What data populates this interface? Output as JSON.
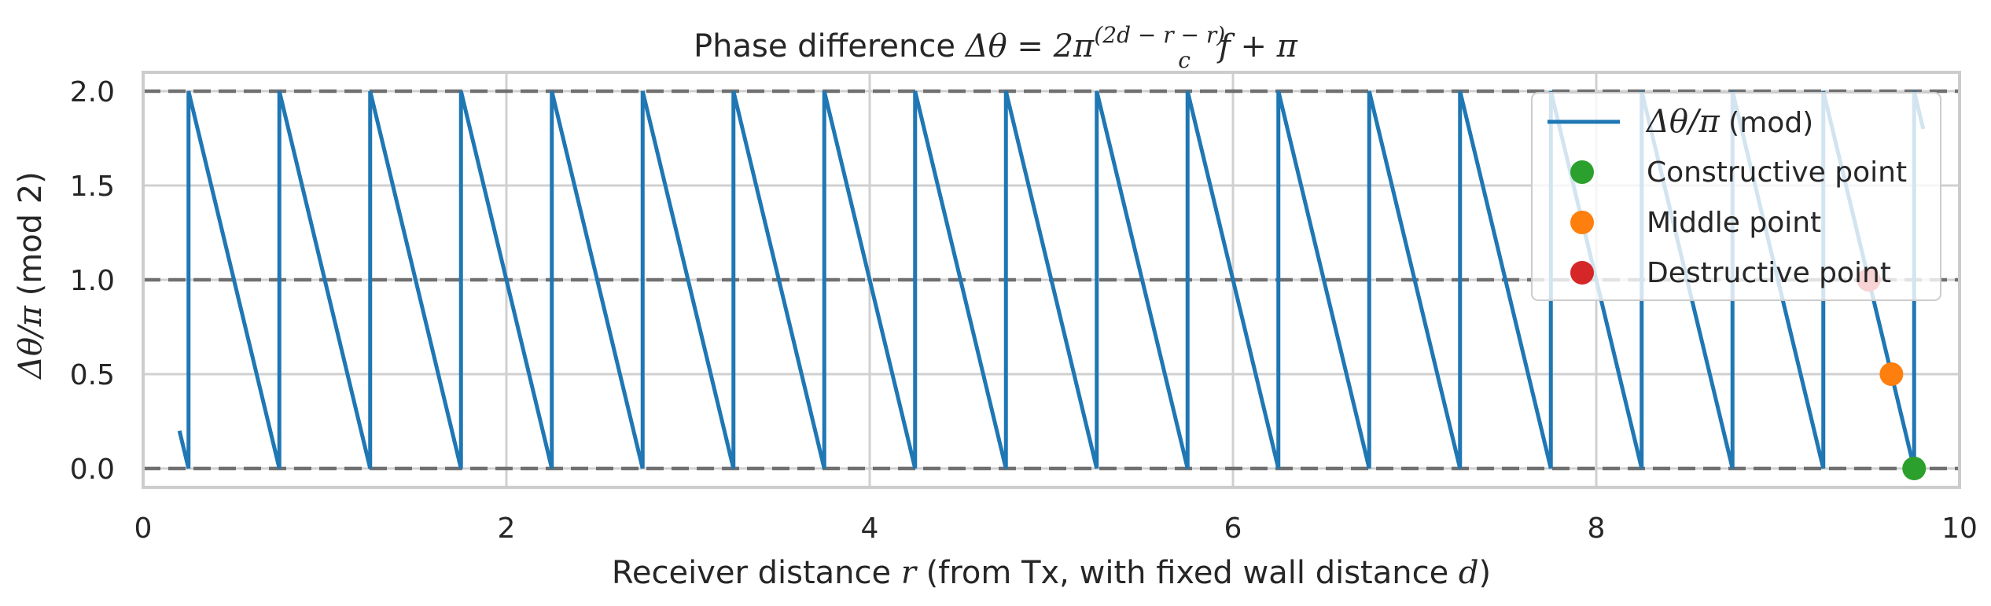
{
  "chart_data": {
    "type": "line",
    "title": {
      "prefix": "Phase difference ",
      "lhs": "Δθ = 2π",
      "frac_num": "(2d − r − r)",
      "frac_den": "c",
      "rhs": "f + π"
    },
    "xlabel": {
      "pre": "Receiver distance ",
      "var1": "r",
      "mid": " (from Tx, with fixed wall distance ",
      "var2": "d",
      "post": ")"
    },
    "ylabel": {
      "math": "Δθ/π",
      "text": " (mod 2)"
    },
    "xlim": [
      0,
      10
    ],
    "ylim": [
      -0.1,
      2.1
    ],
    "xticks": [
      0,
      2,
      4,
      6,
      8,
      10
    ],
    "yticks": [
      0.0,
      0.5,
      1.0,
      1.5,
      2.0
    ],
    "xtick_labels": [
      "0",
      "2",
      "4",
      "6",
      "8",
      "10"
    ],
    "ytick_labels": [
      "0.0",
      "0.5",
      "1.0",
      "1.5",
      "2.0"
    ],
    "grid": true,
    "hlines": [
      0.0,
      1.0,
      2.0
    ],
    "legend_position": "top-right",
    "series": [
      {
        "name": "Δθ/π (mod)",
        "kind": "line",
        "color": "#1f77b4",
        "x": [
          0.2,
          0.25,
          0.25,
          0.75,
          0.75,
          1.25,
          1.25,
          1.75,
          1.75,
          2.25,
          2.25,
          2.75,
          2.75,
          3.25,
          3.25,
          3.75,
          3.75,
          4.25,
          4.25,
          4.75,
          4.75,
          5.25,
          5.25,
          5.75,
          5.75,
          6.25,
          6.25,
          6.75,
          6.75,
          7.25,
          7.25,
          7.75,
          7.75,
          8.25,
          8.25,
          8.75,
          8.75,
          9.25,
          9.25,
          9.75,
          9.75,
          9.8
        ],
        "y": [
          0.2,
          0.0,
          2.0,
          0.0,
          2.0,
          0.0,
          2.0,
          0.0,
          2.0,
          0.0,
          2.0,
          0.0,
          2.0,
          0.0,
          2.0,
          0.0,
          2.0,
          0.0,
          2.0,
          0.0,
          2.0,
          0.0,
          2.0,
          0.0,
          2.0,
          0.0,
          2.0,
          0.0,
          2.0,
          0.0,
          2.0,
          0.0,
          2.0,
          0.0,
          2.0,
          0.0,
          2.0,
          0.0,
          2.0,
          0.0,
          2.0,
          1.8
        ]
      },
      {
        "name": "Constructive point",
        "kind": "scatter",
        "color": "#2ca02c",
        "x": [
          9.75
        ],
        "y": [
          0.0
        ]
      },
      {
        "name": "Middle point",
        "kind": "scatter",
        "color": "#ff7f0e",
        "x": [
          9.625
        ],
        "y": [
          0.5
        ]
      },
      {
        "name": "Destructive point",
        "kind": "scatter",
        "color": "#d62728",
        "x": [
          9.5
        ],
        "y": [
          1.0
        ]
      }
    ],
    "legend": {
      "line_math": "Δθ/π",
      "line_text": " (mod)",
      "constructive": "Constructive point",
      "middle": "Middle point",
      "destructive": "Destructive point"
    }
  }
}
